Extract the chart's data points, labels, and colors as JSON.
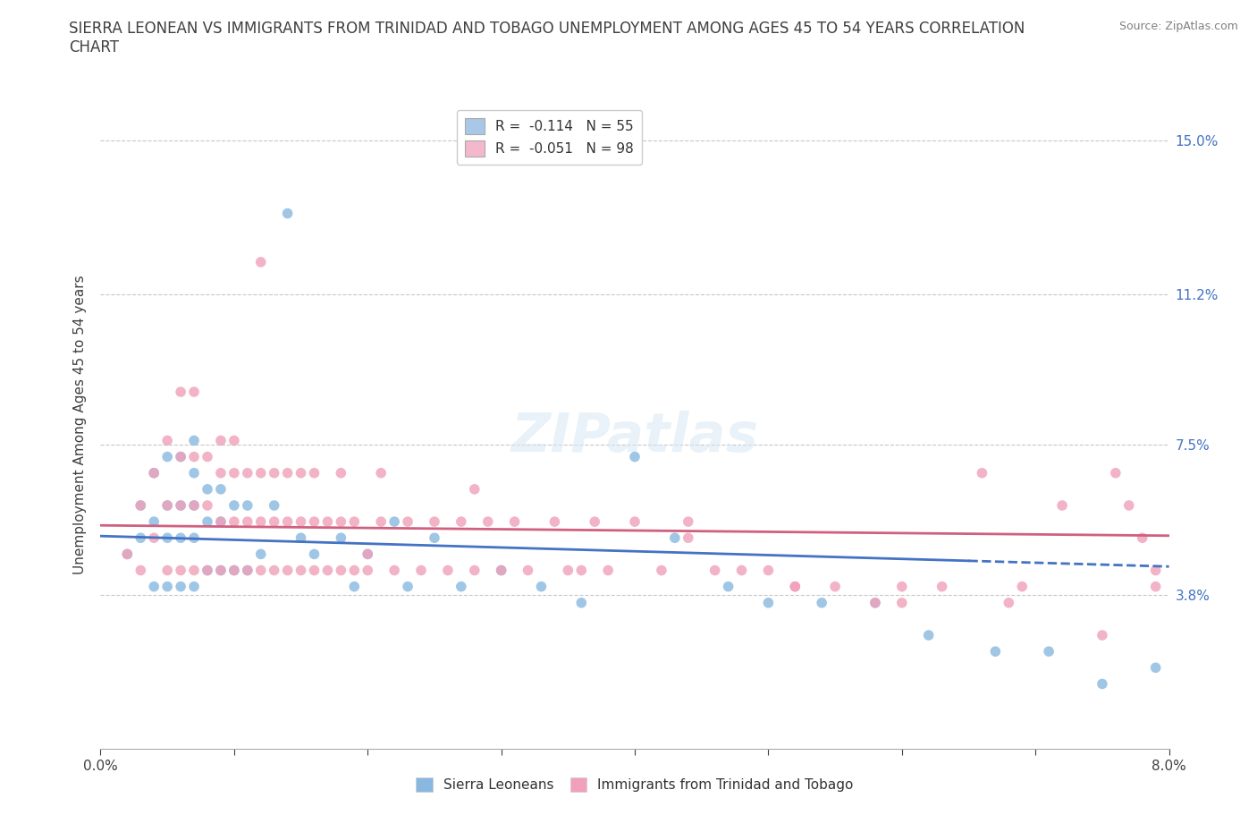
{
  "title": "SIERRA LEONEAN VS IMMIGRANTS FROM TRINIDAD AND TOBAGO UNEMPLOYMENT AMONG AGES 45 TO 54 YEARS CORRELATION\nCHART",
  "source_text": "Source: ZipAtlas.com",
  "ylabel": "Unemployment Among Ages 45 to 54 years",
  "xlim": [
    0.0,
    0.08
  ],
  "ylim": [
    0.0,
    0.16
  ],
  "ytick_values": [
    0.0,
    0.038,
    0.075,
    0.112,
    0.15
  ],
  "ytick_labels": [
    "",
    "3.8%",
    "7.5%",
    "11.2%",
    "15.0%"
  ],
  "xtick_values": [
    0.0,
    0.08
  ],
  "xtick_labels": [
    "0.0%",
    "8.0%"
  ],
  "legend_entries": [
    {
      "label": "R =  -0.114   N = 55",
      "facecolor": "#a8c8e8"
    },
    {
      "label": "R =  -0.051   N = 98",
      "facecolor": "#f4b8cc"
    }
  ],
  "series1_name": "Sierra Leoneans",
  "series1_dot_color": "#88b8e0",
  "series1_line_color": "#4472c4",
  "series1_R": -0.114,
  "series2_name": "Immigrants from Trinidad and Tobago",
  "series2_dot_color": "#f0a0b8",
  "series2_line_color": "#d06080",
  "series2_R": -0.051,
  "watermark": "ZIPatlas",
  "bg_color": "#ffffff",
  "grid_color": "#c8c8c8",
  "title_color": "#404040",
  "ytick_color": "#4472c4",
  "xtick_color": "#404040",
  "source_color": "#808080",
  "scatter1_x": [
    0.002,
    0.003,
    0.003,
    0.004,
    0.004,
    0.004,
    0.005,
    0.005,
    0.005,
    0.005,
    0.006,
    0.006,
    0.006,
    0.006,
    0.007,
    0.007,
    0.007,
    0.007,
    0.007,
    0.008,
    0.008,
    0.008,
    0.009,
    0.009,
    0.009,
    0.01,
    0.01,
    0.011,
    0.011,
    0.012,
    0.013,
    0.014,
    0.015,
    0.016,
    0.018,
    0.019,
    0.02,
    0.022,
    0.023,
    0.025,
    0.027,
    0.03,
    0.033,
    0.036,
    0.04,
    0.043,
    0.047,
    0.05,
    0.054,
    0.058,
    0.062,
    0.067,
    0.071,
    0.075,
    0.079
  ],
  "scatter1_y": [
    0.048,
    0.052,
    0.06,
    0.04,
    0.056,
    0.068,
    0.04,
    0.052,
    0.06,
    0.072,
    0.04,
    0.052,
    0.06,
    0.072,
    0.04,
    0.052,
    0.06,
    0.068,
    0.076,
    0.044,
    0.056,
    0.064,
    0.044,
    0.056,
    0.064,
    0.044,
    0.06,
    0.044,
    0.06,
    0.048,
    0.06,
    0.132,
    0.052,
    0.048,
    0.052,
    0.04,
    0.048,
    0.056,
    0.04,
    0.052,
    0.04,
    0.044,
    0.04,
    0.036,
    0.072,
    0.052,
    0.04,
    0.036,
    0.036,
    0.036,
    0.028,
    0.024,
    0.024,
    0.016,
    0.02
  ],
  "scatter2_x": [
    0.002,
    0.003,
    0.003,
    0.004,
    0.004,
    0.005,
    0.005,
    0.005,
    0.006,
    0.006,
    0.006,
    0.006,
    0.007,
    0.007,
    0.007,
    0.007,
    0.008,
    0.008,
    0.008,
    0.009,
    0.009,
    0.009,
    0.009,
    0.01,
    0.01,
    0.01,
    0.01,
    0.011,
    0.011,
    0.011,
    0.012,
    0.012,
    0.012,
    0.013,
    0.013,
    0.013,
    0.014,
    0.014,
    0.014,
    0.015,
    0.015,
    0.015,
    0.016,
    0.016,
    0.016,
    0.017,
    0.017,
    0.018,
    0.018,
    0.018,
    0.019,
    0.019,
    0.02,
    0.021,
    0.021,
    0.022,
    0.023,
    0.024,
    0.025,
    0.026,
    0.027,
    0.028,
    0.029,
    0.03,
    0.031,
    0.032,
    0.034,
    0.035,
    0.037,
    0.038,
    0.04,
    0.042,
    0.044,
    0.046,
    0.048,
    0.05,
    0.052,
    0.055,
    0.058,
    0.06,
    0.063,
    0.066,
    0.069,
    0.072,
    0.075,
    0.076,
    0.077,
    0.078,
    0.079,
    0.079,
    0.012,
    0.02,
    0.028,
    0.036,
    0.044,
    0.052,
    0.06,
    0.068
  ],
  "scatter2_y": [
    0.048,
    0.044,
    0.06,
    0.052,
    0.068,
    0.044,
    0.06,
    0.076,
    0.044,
    0.06,
    0.072,
    0.088,
    0.044,
    0.06,
    0.072,
    0.088,
    0.044,
    0.06,
    0.072,
    0.044,
    0.056,
    0.068,
    0.076,
    0.044,
    0.056,
    0.068,
    0.076,
    0.044,
    0.056,
    0.068,
    0.044,
    0.056,
    0.068,
    0.044,
    0.056,
    0.068,
    0.044,
    0.056,
    0.068,
    0.044,
    0.056,
    0.068,
    0.044,
    0.056,
    0.068,
    0.044,
    0.056,
    0.044,
    0.056,
    0.068,
    0.044,
    0.056,
    0.044,
    0.056,
    0.068,
    0.044,
    0.056,
    0.044,
    0.056,
    0.044,
    0.056,
    0.044,
    0.056,
    0.044,
    0.056,
    0.044,
    0.056,
    0.044,
    0.056,
    0.044,
    0.056,
    0.044,
    0.056,
    0.044,
    0.044,
    0.044,
    0.04,
    0.04,
    0.036,
    0.036,
    0.04,
    0.068,
    0.04,
    0.06,
    0.028,
    0.068,
    0.06,
    0.052,
    0.044,
    0.04,
    0.12,
    0.048,
    0.064,
    0.044,
    0.052,
    0.04,
    0.04,
    0.036
  ]
}
